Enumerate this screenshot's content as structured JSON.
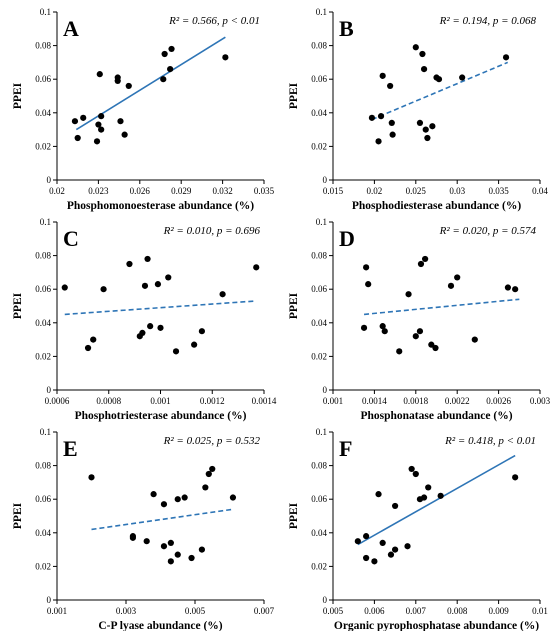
{
  "chart_data": [
    {
      "type": "scatter",
      "panel_label": "A",
      "stats_text": "R² = 0.566, p < 0.01",
      "xlabel": "Phosphomonoesterase abundance (%)",
      "ylabel": "PPEI",
      "xlim": [
        0.02,
        0.035
      ],
      "ylim": [
        0,
        0.1
      ],
      "x_ticks": [
        0.02,
        0.023,
        0.026,
        0.029,
        0.032,
        0.035
      ],
      "x_tick_labels": [
        "0.02",
        "0.023",
        "0.026",
        "0.029",
        "0.032",
        "0.035"
      ],
      "y_ticks": [
        0,
        0.02,
        0.04,
        0.06,
        0.08,
        0.1
      ],
      "y_tick_labels": [
        "0",
        "0.02",
        "0.04",
        "0.06",
        "0.08",
        "0.1"
      ],
      "grid": false,
      "trendline": {
        "style": "solid",
        "color": "#2e75b6",
        "x": [
          0.0214,
          0.0322
        ],
        "y": [
          0.03,
          0.085
        ]
      },
      "points": [
        {
          "x": 0.0213,
          "y": 0.035
        },
        {
          "x": 0.0215,
          "y": 0.025
        },
        {
          "x": 0.0219,
          "y": 0.037
        },
        {
          "x": 0.0229,
          "y": 0.023
        },
        {
          "x": 0.023,
          "y": 0.033
        },
        {
          "x": 0.0231,
          "y": 0.063
        },
        {
          "x": 0.0232,
          "y": 0.038
        },
        {
          "x": 0.0232,
          "y": 0.03
        },
        {
          "x": 0.0244,
          "y": 0.061
        },
        {
          "x": 0.0244,
          "y": 0.059
        },
        {
          "x": 0.0246,
          "y": 0.035
        },
        {
          "x": 0.0249,
          "y": 0.027
        },
        {
          "x": 0.0252,
          "y": 0.056
        },
        {
          "x": 0.0277,
          "y": 0.06
        },
        {
          "x": 0.0278,
          "y": 0.075
        },
        {
          "x": 0.0282,
          "y": 0.066
        },
        {
          "x": 0.0283,
          "y": 0.078
        },
        {
          "x": 0.0322,
          "y": 0.073
        }
      ]
    },
    {
      "type": "scatter",
      "panel_label": "B",
      "stats_text": "R² = 0.194, p = 0.068",
      "xlabel": "Phosphodiesterase abundance (%)",
      "ylabel": "PPEI",
      "xlim": [
        0.015,
        0.04
      ],
      "ylim": [
        0,
        0.1
      ],
      "x_ticks": [
        0.015,
        0.02,
        0.025,
        0.03,
        0.035,
        0.04
      ],
      "x_tick_labels": [
        "0.015",
        "0.02",
        "0.025",
        "0.03",
        "0.035",
        "0.04"
      ],
      "y_ticks": [
        0,
        0.02,
        0.04,
        0.06,
        0.08,
        0.1
      ],
      "y_tick_labels": [
        "0",
        "0.02",
        "0.04",
        "0.06",
        "0.08",
        "0.1"
      ],
      "grid": false,
      "trendline": {
        "style": "dashed",
        "color": "#2e75b6",
        "x": [
          0.0197,
          0.0361
        ],
        "y": [
          0.036,
          0.07
        ]
      },
      "points": [
        {
          "x": 0.0197,
          "y": 0.037
        },
        {
          "x": 0.0205,
          "y": 0.023
        },
        {
          "x": 0.0208,
          "y": 0.038
        },
        {
          "x": 0.021,
          "y": 0.062
        },
        {
          "x": 0.0219,
          "y": 0.056
        },
        {
          "x": 0.0221,
          "y": 0.034
        },
        {
          "x": 0.0222,
          "y": 0.027
        },
        {
          "x": 0.025,
          "y": 0.079
        },
        {
          "x": 0.0255,
          "y": 0.034
        },
        {
          "x": 0.0258,
          "y": 0.075
        },
        {
          "x": 0.026,
          "y": 0.066
        },
        {
          "x": 0.0262,
          "y": 0.03
        },
        {
          "x": 0.0264,
          "y": 0.025
        },
        {
          "x": 0.027,
          "y": 0.032
        },
        {
          "x": 0.0275,
          "y": 0.061
        },
        {
          "x": 0.0278,
          "y": 0.06
        },
        {
          "x": 0.0306,
          "y": 0.061
        },
        {
          "x": 0.0359,
          "y": 0.073
        }
      ]
    },
    {
      "type": "scatter",
      "panel_label": "C",
      "stats_text": "R² = 0.010,  p = 0.696",
      "xlabel": "Phosphotriesterase abundance (%)",
      "ylabel": "PPEI",
      "xlim": [
        0.0006,
        0.0014
      ],
      "ylim": [
        0,
        0.1
      ],
      "x_ticks": [
        0.0006,
        0.0008,
        0.001,
        0.0012,
        0.0014
      ],
      "x_tick_labels": [
        "0.0006",
        "0.0008",
        "0.001",
        "0.0012",
        "0.0014"
      ],
      "y_ticks": [
        0,
        0.02,
        0.04,
        0.06,
        0.08,
        0.1
      ],
      "y_tick_labels": [
        "0",
        "0.02",
        "0.04",
        "0.06",
        "0.08",
        "0.1"
      ],
      "grid": false,
      "trendline": {
        "style": "dashed",
        "color": "#2e75b6",
        "x": [
          0.00063,
          0.00137
        ],
        "y": [
          0.045,
          0.053
        ]
      },
      "points": [
        {
          "x": 0.00063,
          "y": 0.061
        },
        {
          "x": 0.00072,
          "y": 0.025
        },
        {
          "x": 0.00074,
          "y": 0.03
        },
        {
          "x": 0.00078,
          "y": 0.06
        },
        {
          "x": 0.00088,
          "y": 0.075
        },
        {
          "x": 0.00092,
          "y": 0.032
        },
        {
          "x": 0.00093,
          "y": 0.034
        },
        {
          "x": 0.00094,
          "y": 0.062
        },
        {
          "x": 0.00095,
          "y": 0.078
        },
        {
          "x": 0.00096,
          "y": 0.038
        },
        {
          "x": 0.00099,
          "y": 0.063
        },
        {
          "x": 0.001,
          "y": 0.037
        },
        {
          "x": 0.00103,
          "y": 0.067
        },
        {
          "x": 0.00106,
          "y": 0.023
        },
        {
          "x": 0.00113,
          "y": 0.027
        },
        {
          "x": 0.00116,
          "y": 0.035
        },
        {
          "x": 0.00124,
          "y": 0.057
        },
        {
          "x": 0.00137,
          "y": 0.073
        }
      ]
    },
    {
      "type": "scatter",
      "panel_label": "D",
      "stats_text": "R² = 0.020,  p = 0.574",
      "xlabel": "Phosphonatase abundance (%)",
      "ylabel": "PPEI",
      "xlim": [
        0.001,
        0.003
      ],
      "ylim": [
        0,
        0.1
      ],
      "x_ticks": [
        0.001,
        0.0014,
        0.0018,
        0.0022,
        0.0026,
        0.003
      ],
      "x_tick_labels": [
        "0.001",
        "0.0014",
        "0.0018",
        "0.0022",
        "0.0026",
        "0.003"
      ],
      "y_ticks": [
        0,
        0.02,
        0.04,
        0.06,
        0.08,
        0.1
      ],
      "y_tick_labels": [
        "0",
        "0.02",
        "0.04",
        "0.06",
        "0.08",
        "0.1"
      ],
      "grid": false,
      "trendline": {
        "style": "dashed",
        "color": "#2e75b6",
        "x": [
          0.0013,
          0.0028
        ],
        "y": [
          0.045,
          0.054
        ]
      },
      "points": [
        {
          "x": 0.0013,
          "y": 0.037
        },
        {
          "x": 0.00132,
          "y": 0.073
        },
        {
          "x": 0.00134,
          "y": 0.063
        },
        {
          "x": 0.00148,
          "y": 0.038
        },
        {
          "x": 0.0015,
          "y": 0.035
        },
        {
          "x": 0.00164,
          "y": 0.023
        },
        {
          "x": 0.00173,
          "y": 0.057
        },
        {
          "x": 0.0018,
          "y": 0.032
        },
        {
          "x": 0.00184,
          "y": 0.035
        },
        {
          "x": 0.00185,
          "y": 0.075
        },
        {
          "x": 0.00189,
          "y": 0.078
        },
        {
          "x": 0.00195,
          "y": 0.027
        },
        {
          "x": 0.00199,
          "y": 0.025
        },
        {
          "x": 0.00214,
          "y": 0.062
        },
        {
          "x": 0.0022,
          "y": 0.067
        },
        {
          "x": 0.00237,
          "y": 0.03
        },
        {
          "x": 0.00269,
          "y": 0.061
        },
        {
          "x": 0.00276,
          "y": 0.06
        }
      ]
    },
    {
      "type": "scatter",
      "panel_label": "E",
      "stats_text": "R² = 0.025,  p = 0.532",
      "xlabel": "C-P lyase  abundance (%)",
      "ylabel": "PPEI",
      "xlim": [
        0.001,
        0.007
      ],
      "ylim": [
        0,
        0.1
      ],
      "x_ticks": [
        0.001,
        0.003,
        0.005,
        0.007
      ],
      "x_tick_labels": [
        "0.001",
        "0.003",
        "0.005",
        "0.007"
      ],
      "y_ticks": [
        0,
        0.02,
        0.04,
        0.06,
        0.08,
        0.1
      ],
      "y_tick_labels": [
        "0",
        "0.02",
        "0.04",
        "0.06",
        "0.08",
        "0.1"
      ],
      "grid": false,
      "trendline": {
        "style": "dashed",
        "color": "#2e75b6",
        "x": [
          0.002,
          0.0061
        ],
        "y": [
          0.042,
          0.054
        ]
      },
      "points": [
        {
          "x": 0.002,
          "y": 0.073
        },
        {
          "x": 0.0032,
          "y": 0.038
        },
        {
          "x": 0.0032,
          "y": 0.037
        },
        {
          "x": 0.0036,
          "y": 0.035
        },
        {
          "x": 0.0038,
          "y": 0.063
        },
        {
          "x": 0.0041,
          "y": 0.032
        },
        {
          "x": 0.0041,
          "y": 0.057
        },
        {
          "x": 0.0043,
          "y": 0.023
        },
        {
          "x": 0.0043,
          "y": 0.034
        },
        {
          "x": 0.0045,
          "y": 0.027
        },
        {
          "x": 0.0045,
          "y": 0.06
        },
        {
          "x": 0.0047,
          "y": 0.061
        },
        {
          "x": 0.0049,
          "y": 0.025
        },
        {
          "x": 0.0052,
          "y": 0.03
        },
        {
          "x": 0.0053,
          "y": 0.067
        },
        {
          "x": 0.0054,
          "y": 0.075
        },
        {
          "x": 0.0055,
          "y": 0.078
        },
        {
          "x": 0.0061,
          "y": 0.061
        }
      ]
    },
    {
      "type": "scatter",
      "panel_label": "F",
      "stats_text": "R² = 0.418, p < 0.01",
      "xlabel": "Organic pyrophosphatase abundance (%)",
      "ylabel": "PPEI",
      "xlim": [
        0.005,
        0.01
      ],
      "ylim": [
        0,
        0.1
      ],
      "x_ticks": [
        0.005,
        0.006,
        0.007,
        0.008,
        0.009,
        0.01
      ],
      "x_tick_labels": [
        "0.005",
        "0.006",
        "0.007",
        "0.008",
        "0.009",
        "0.01"
      ],
      "y_ticks": [
        0,
        0.02,
        0.04,
        0.06,
        0.08,
        0.1
      ],
      "y_tick_labels": [
        "0",
        "0.02",
        "0.04",
        "0.06",
        "0.08",
        "0.1"
      ],
      "grid": false,
      "trendline": {
        "style": "solid",
        "color": "#2e75b6",
        "x": [
          0.0056,
          0.0094
        ],
        "y": [
          0.033,
          0.086
        ]
      },
      "points": [
        {
          "x": 0.0056,
          "y": 0.035
        },
        {
          "x": 0.0058,
          "y": 0.025
        },
        {
          "x": 0.0058,
          "y": 0.038
        },
        {
          "x": 0.006,
          "y": 0.023
        },
        {
          "x": 0.0061,
          "y": 0.063
        },
        {
          "x": 0.0062,
          "y": 0.034
        },
        {
          "x": 0.0064,
          "y": 0.027
        },
        {
          "x": 0.0065,
          "y": 0.03
        },
        {
          "x": 0.0065,
          "y": 0.056
        },
        {
          "x": 0.0068,
          "y": 0.032
        },
        {
          "x": 0.0069,
          "y": 0.078
        },
        {
          "x": 0.007,
          "y": 0.075
        },
        {
          "x": 0.0071,
          "y": 0.06
        },
        {
          "x": 0.0072,
          "y": 0.061
        },
        {
          "x": 0.0073,
          "y": 0.067
        },
        {
          "x": 0.0076,
          "y": 0.062
        },
        {
          "x": 0.0094,
          "y": 0.073
        }
      ]
    }
  ]
}
